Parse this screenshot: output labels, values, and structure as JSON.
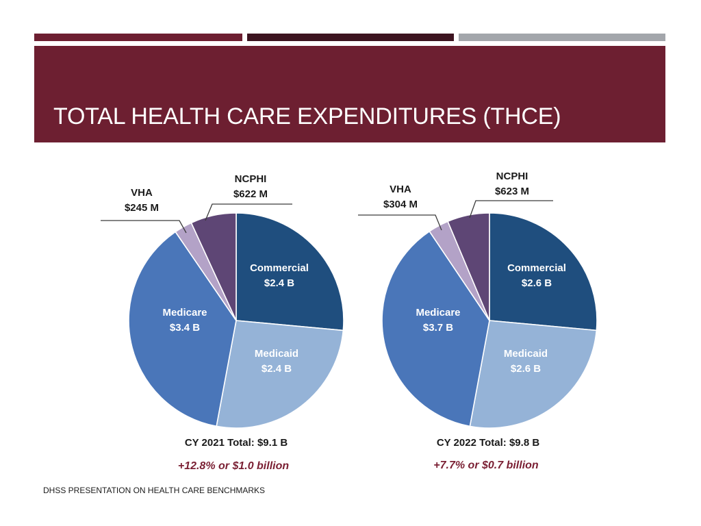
{
  "colors": {
    "title_band": "#6d1f31",
    "bar_1": "#6d1f31",
    "bar_2": "#3d1420",
    "bar_3": "#a3a6ab",
    "commercial": "#1f4e7e",
    "medicaid": "#95b3d7",
    "medicare": "#4a76b9",
    "vha": "#b3a2c7",
    "ncphi": "#5e4675",
    "growth_text": "#7a1f33",
    "label_dark": "#1a1a1a",
    "label_light": "#ffffff"
  },
  "slide": {
    "title": "TOTAL HEALTH CARE EXPENDITURES (THCE)",
    "footer": "DHSS PRESENTATION ON HEALTH CARE BENCHMARKS"
  },
  "chart_data": [
    {
      "type": "pie",
      "title": "CY 2021 Total: $9.1 B",
      "total_billions": 9.1,
      "growth_note": "+12.8% or $1.0 billion",
      "slices": [
        {
          "name": "Commercial",
          "label": "$2.4 B",
          "value": 2.4,
          "color": "#1f4e7e"
        },
        {
          "name": "Medicaid",
          "label": "$2.4 B",
          "value": 2.4,
          "color": "#95b3d7"
        },
        {
          "name": "Medicare",
          "label": "$3.4 B",
          "value": 3.4,
          "color": "#4a76b9"
        },
        {
          "name": "VHA",
          "label": "$245 M",
          "value": 0.245,
          "color": "#b3a2c7"
        },
        {
          "name": "NCPHI",
          "label": "$622 M",
          "value": 0.622,
          "color": "#5e4675"
        }
      ]
    },
    {
      "type": "pie",
      "title": "CY 2022 Total: $9.8 B",
      "total_billions": 9.8,
      "growth_note": "+7.7% or $0.7 billion",
      "slices": [
        {
          "name": "Commercial",
          "label": "$2.6 B",
          "value": 2.6,
          "color": "#1f4e7e"
        },
        {
          "name": "Medicaid",
          "label": "$2.6 B",
          "value": 2.6,
          "color": "#95b3d7"
        },
        {
          "name": "Medicare",
          "label": "$3.7 B",
          "value": 3.7,
          "color": "#4a76b9"
        },
        {
          "name": "VHA",
          "label": "$304 M",
          "value": 0.304,
          "color": "#b3a2c7"
        },
        {
          "name": "NCPHI",
          "label": "$623 M",
          "value": 0.623,
          "color": "#5e4675"
        }
      ]
    }
  ]
}
